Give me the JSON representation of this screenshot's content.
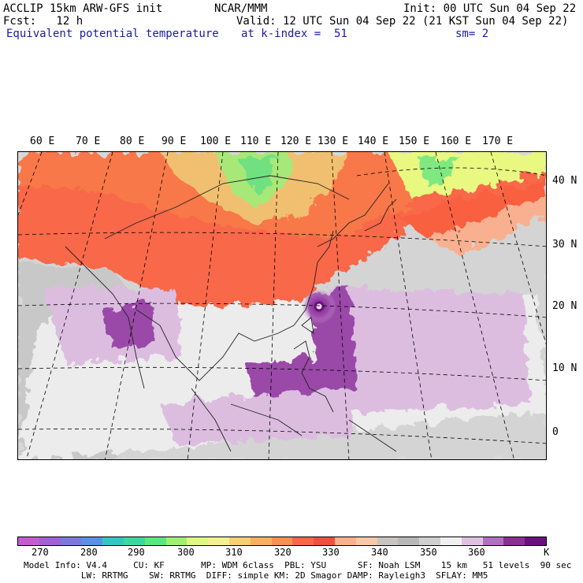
{
  "header": {
    "line1_left": "ACCLIP 15km ARW-GFS init",
    "line1_center": "NCAR/MMM",
    "line1_right": "Init: 00 UTC Sun 04 Sep 22",
    "line2_left": "Fcst:   12 h",
    "line2_right": "Valid: 12 UTC Sun 04 Sep 22 (21 KST Sun 04 Sep 22)",
    "line3_left": "Equivalent potential temperature",
    "line3_center": "at k-index =  51",
    "line3_right": "sm= 2"
  },
  "map": {
    "lon_labels": [
      "60 E",
      "70 E",
      "80 E",
      "90 E",
      "100 E",
      "110 E",
      "120 E",
      "130 E",
      "140 E",
      "150 E",
      "160 E",
      "170 E"
    ],
    "lat_labels": [
      "40 N",
      "30 N",
      "20 N",
      "10 N",
      "0"
    ],
    "feature": "typhoon-vortex"
  },
  "colorbar": {
    "colors": [
      "#c45cd0",
      "#a060d8",
      "#7c78e0",
      "#5a90e8",
      "#32c8c0",
      "#3cd8a0",
      "#58e880",
      "#a0f070",
      "#e0f880",
      "#f8f090",
      "#f8d070",
      "#f8b060",
      "#f89050",
      "#f86848",
      "#f05040",
      "#f8b090",
      "#f8c8a8",
      "#c8c4c0",
      "#b8b8b8",
      "#d0d0d0",
      "#f0f0f0",
      "#e0c0e0",
      "#b070c0",
      "#8a3090",
      "#6a1080"
    ],
    "ticks": [
      "270",
      "280",
      "290",
      "300",
      "310",
      "320",
      "330",
      "340",
      "350",
      "360"
    ],
    "unit": "K"
  },
  "model_info": {
    "line1": "Model Info: V4.4     CU: KF       MP: WDM 6class  PBL: YSU      SF: Noah LSM    15 km   51 levels  90 sec",
    "line2": "           LW: RRTMG    SW: RRTMG  DIFF: simple KM: 2D Smagor DAMP: Rayleigh3  SFLAY: MM5"
  }
}
